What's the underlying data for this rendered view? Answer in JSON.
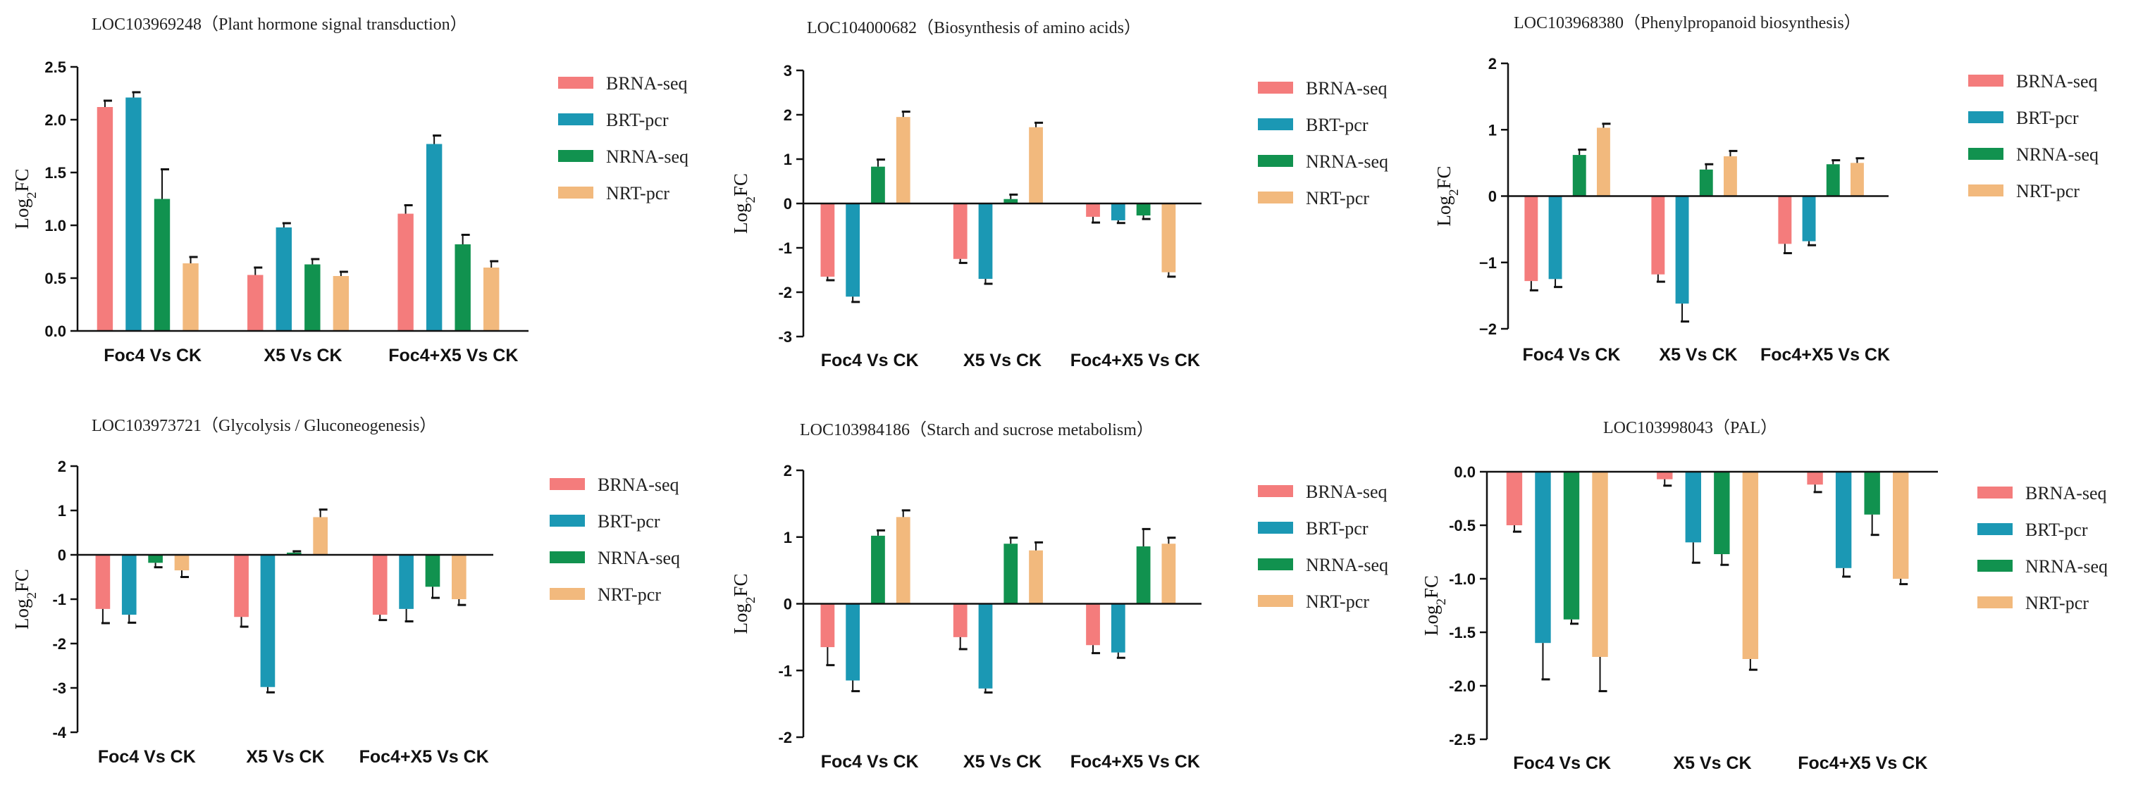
{
  "colors": {
    "BRNA-seq": "#f47c7c",
    "BRT-pcr": "#1b98b4",
    "NRNA-seq": "#11924f",
    "NRT-pcr": "#f2b97d"
  },
  "chart_data": [
    {
      "type": "bar",
      "title": "LOC103969248（Plant hormone signal transduction）",
      "ylabel": "Log2FC",
      "ylim": [
        0,
        2.5
      ],
      "yticks": [
        0.0,
        0.5,
        1.0,
        1.5,
        2.0,
        2.5
      ],
      "ytick_labels": [
        "0.0",
        "0.5",
        "1.0",
        "1.5",
        "2.0",
        "2.5"
      ],
      "categories": [
        "Foc4 Vs CK",
        "X5 Vs CK",
        "Foc4+X5 Vs CK"
      ],
      "series": [
        {
          "name": "BRNA-seq",
          "values": [
            2.12,
            0.53,
            1.11
          ],
          "errors": [
            0.06,
            0.07,
            0.08
          ]
        },
        {
          "name": "BRT-pcr",
          "values": [
            2.21,
            0.98,
            1.77
          ],
          "errors": [
            0.05,
            0.04,
            0.08
          ]
        },
        {
          "name": "NRNA-seq",
          "values": [
            1.25,
            0.63,
            0.82
          ],
          "errors": [
            0.28,
            0.05,
            0.09
          ]
        },
        {
          "name": "NRT-pcr",
          "values": [
            0.64,
            0.52,
            0.6
          ],
          "errors": [
            0.06,
            0.04,
            0.06
          ]
        }
      ]
    },
    {
      "type": "bar",
      "title": "LOC104000682（Biosynthesis of amino acids）",
      "ylabel": "Log2FC",
      "ylim": [
        -3,
        3
      ],
      "yticks": [
        -3,
        -2,
        -1,
        0,
        1,
        2,
        3
      ],
      "ytick_labels": [
        "-3",
        "-2",
        "-1",
        "0",
        "1",
        "2",
        "3"
      ],
      "categories": [
        "Foc4 Vs CK",
        "X5 Vs CK",
        "Foc4+X5 Vs CK"
      ],
      "series": [
        {
          "name": "BRNA-seq",
          "values": [
            -1.65,
            -1.25,
            -0.3
          ],
          "errors": [
            0.08,
            0.09,
            0.13
          ]
        },
        {
          "name": "BRT-pcr",
          "values": [
            -2.1,
            -1.7,
            -0.38
          ],
          "errors": [
            0.12,
            0.11,
            0.06
          ]
        },
        {
          "name": "NRNA-seq",
          "values": [
            0.83,
            0.1,
            -0.27
          ],
          "errors": [
            0.16,
            0.1,
            0.08
          ]
        },
        {
          "name": "NRT-pcr",
          "values": [
            1.95,
            1.72,
            -1.55
          ],
          "errors": [
            0.12,
            0.1,
            0.1
          ]
        }
      ]
    },
    {
      "type": "bar",
      "title": "LOC103968380（Phenylpropanoid biosynthesis）",
      "ylabel": "Log2FC",
      "ylim": [
        -2,
        2
      ],
      "yticks": [
        -2,
        -1,
        0,
        1,
        2
      ],
      "ytick_labels": [
        "−2",
        "−1",
        "0",
        "1",
        "2"
      ],
      "categories": [
        "Foc4 Vs CK",
        "X5 Vs CK",
        "Foc4+X5 Vs CK"
      ],
      "series": [
        {
          "name": "BRNA-seq",
          "values": [
            -1.28,
            -1.18,
            -0.72
          ],
          "errors": [
            0.14,
            0.11,
            0.14
          ]
        },
        {
          "name": "BRT-pcr",
          "values": [
            -1.25,
            -1.62,
            -0.68
          ],
          "errors": [
            0.12,
            0.27,
            0.06
          ]
        },
        {
          "name": "NRNA-seq",
          "values": [
            0.62,
            0.4,
            0.48
          ],
          "errors": [
            0.08,
            0.08,
            0.06
          ]
        },
        {
          "name": "NRT-pcr",
          "values": [
            1.03,
            0.6,
            0.5
          ],
          "errors": [
            0.06,
            0.08,
            0.07
          ]
        }
      ]
    },
    {
      "type": "bar",
      "title": "LOC103973721（Glycolysis / Gluconeogenesis）",
      "ylabel": "Log2FC",
      "ylim": [
        -4,
        2
      ],
      "yticks": [
        -4,
        -3,
        -2,
        -1,
        0,
        1,
        2
      ],
      "ytick_labels": [
        "-4",
        "-3",
        "-2",
        "-1",
        "0",
        "1",
        "2"
      ],
      "categories": [
        "Foc4 Vs CK",
        "X5 Vs CK",
        "Foc4+X5 Vs CK"
      ],
      "series": [
        {
          "name": "BRNA-seq",
          "values": [
            -1.22,
            -1.4,
            -1.35
          ],
          "errors": [
            0.32,
            0.22,
            0.12
          ]
        },
        {
          "name": "BRT-pcr",
          "values": [
            -1.35,
            -2.98,
            -1.22
          ],
          "errors": [
            0.18,
            0.12,
            0.28
          ]
        },
        {
          "name": "NRNA-seq",
          "values": [
            -0.18,
            0.05,
            -0.72
          ],
          "errors": [
            0.1,
            0.03,
            0.25
          ]
        },
        {
          "name": "NRT-pcr",
          "values": [
            -0.35,
            0.85,
            -1.0
          ],
          "errors": [
            0.15,
            0.17,
            0.13
          ]
        }
      ]
    },
    {
      "type": "bar",
      "title": "LOC103984186（Starch and sucrose metabolism）",
      "ylabel": "Log2FC",
      "ylim": [
        -2,
        2
      ],
      "yticks": [
        -2,
        -1,
        0,
        1,
        2
      ],
      "ytick_labels": [
        "-2",
        "-1",
        "0",
        "1",
        "2"
      ],
      "categories": [
        "Foc4 Vs CK",
        "X5 Vs CK",
        "Foc4+X5 Vs CK"
      ],
      "series": [
        {
          "name": "BRNA-seq",
          "values": [
            -0.65,
            -0.5,
            -0.62
          ],
          "errors": [
            0.27,
            0.18,
            0.12
          ]
        },
        {
          "name": "BRT-pcr",
          "values": [
            -1.15,
            -1.27,
            -0.73
          ],
          "errors": [
            0.16,
            0.06,
            0.08
          ]
        },
        {
          "name": "NRNA-seq",
          "values": [
            1.02,
            0.9,
            0.86
          ],
          "errors": [
            0.08,
            0.09,
            0.26
          ]
        },
        {
          "name": "NRT-pcr",
          "values": [
            1.3,
            0.8,
            0.9
          ],
          "errors": [
            0.1,
            0.12,
            0.09
          ]
        }
      ]
    },
    {
      "type": "bar",
      "title": "LOC103998043（PAL）",
      "ylabel": "Log2FC",
      "ylim": [
        -2.5,
        0
      ],
      "yticks": [
        -2.5,
        -2.0,
        -1.5,
        -1.0,
        -0.5,
        0.0
      ],
      "ytick_labels": [
        "-2.5",
        "-2.0",
        "-1.5",
        "-1.0",
        "-0.5",
        "0.0"
      ],
      "categories": [
        "Foc4 Vs CK",
        "X5 Vs CK",
        "Foc4+X5 Vs CK"
      ],
      "series": [
        {
          "name": "BRNA-seq",
          "values": [
            -0.5,
            -0.07,
            -0.12
          ],
          "errors": [
            0.06,
            0.06,
            0.07
          ]
        },
        {
          "name": "BRT-pcr",
          "values": [
            -1.6,
            -0.66,
            -0.9
          ],
          "errors": [
            0.34,
            0.19,
            0.08
          ]
        },
        {
          "name": "NRNA-seq",
          "values": [
            -1.38,
            -0.77,
            -0.4
          ],
          "errors": [
            0.04,
            0.1,
            0.19
          ]
        },
        {
          "name": "NRT-pcr",
          "values": [
            -1.73,
            -1.75,
            -1.0
          ],
          "errors": [
            0.32,
            0.1,
            0.05
          ]
        }
      ]
    }
  ]
}
